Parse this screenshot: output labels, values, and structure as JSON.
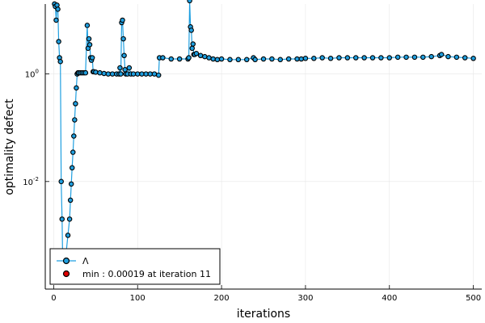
{
  "chart_data": {
    "type": "scatter",
    "xlabel": "iterations",
    "ylabel": "optimality defect",
    "xlim": [
      -10,
      510
    ],
    "ylim_log10": [
      -4.0,
      1.3
    ],
    "y_scale": "log10",
    "grid": true,
    "x_ticks": [
      {
        "value": 0,
        "label": "0"
      },
      {
        "value": 100,
        "label": "100"
      },
      {
        "value": 200,
        "label": "200"
      },
      {
        "value": 300,
        "label": "300"
      },
      {
        "value": 400,
        "label": "400"
      },
      {
        "value": 500,
        "label": "500"
      }
    ],
    "y_ticks": [
      {
        "value": 1,
        "base": "10",
        "exp": "0"
      },
      {
        "value": 0.01,
        "base": "10",
        "exp": "-2"
      }
    ],
    "legend": {
      "placement": "bottom-left",
      "entries": [
        {
          "label": "Λ",
          "color": "#1f9fe0",
          "kind": "line-marker"
        },
        {
          "label": "min : 0.00019 at iteration 11",
          "color": "#e00000",
          "kind": "marker"
        }
      ]
    },
    "series": [
      {
        "name": "Λ",
        "color": "#1f9fe0",
        "x": [
          1,
          2,
          3,
          4,
          5,
          6,
          7,
          8,
          9,
          10,
          11,
          13,
          15,
          17,
          19,
          20,
          21,
          22,
          23,
          24,
          25,
          26,
          27,
          28,
          29,
          30,
          32,
          34,
          36,
          38,
          40,
          41,
          42,
          43,
          44,
          45,
          46,
          47,
          48,
          50,
          55,
          60,
          65,
          70,
          75,
          78,
          79,
          80,
          81,
          82,
          83,
          84,
          85,
          86,
          88,
          90,
          92,
          95,
          100,
          105,
          110,
          115,
          120,
          125,
          126,
          130,
          140,
          150,
          160,
          161,
          162,
          163,
          164,
          165,
          166,
          167,
          168,
          170,
          175,
          180,
          185,
          190,
          195,
          200,
          210,
          220,
          230,
          238,
          240,
          250,
          260,
          270,
          280,
          290,
          295,
          300,
          310,
          320,
          330,
          340,
          350,
          360,
          370,
          380,
          390,
          400,
          410,
          420,
          430,
          440,
          450,
          460,
          462,
          470,
          480,
          490,
          500
        ],
        "y": [
          20,
          18,
          10,
          19,
          16,
          4,
          2.0,
          1.7,
          0.01,
          0.002,
          0.00019,
          0.0002,
          0.0005,
          0.001,
          0.002,
          0.0045,
          0.009,
          0.018,
          0.035,
          0.07,
          0.14,
          0.28,
          0.55,
          1.0,
          1.05,
          1.05,
          1.05,
          1.05,
          1.05,
          1.05,
          8,
          3,
          4.5,
          3.5,
          2,
          1.8,
          2,
          1.1,
          1.1,
          1.08,
          1.05,
          1.02,
          1.0,
          1.0,
          1.0,
          1.0,
          1.3,
          1.0,
          9,
          10,
          4.5,
          2.2,
          1.2,
          1.0,
          1.0,
          1.3,
          1.0,
          1.0,
          1.0,
          1.0,
          1.0,
          1.0,
          1.0,
          0.95,
          2.0,
          2.0,
          1.9,
          1.9,
          1.9,
          2.0,
          23,
          7.5,
          6.5,
          3,
          3.6,
          2.3,
          2.3,
          2.4,
          2.2,
          2.1,
          2.0,
          1.9,
          1.85,
          1.9,
          1.85,
          1.85,
          1.85,
          2.0,
          1.85,
          1.9,
          1.9,
          1.85,
          1.9,
          1.9,
          1.9,
          1.95,
          1.95,
          2.0,
          1.95,
          2.0,
          2.0,
          2.0,
          2.0,
          2.0,
          2.0,
          2.0,
          2.05,
          2.05,
          2.05,
          2.05,
          2.1,
          2.2,
          2.3,
          2.1,
          2.05,
          2.0,
          1.95
        ]
      }
    ]
  }
}
